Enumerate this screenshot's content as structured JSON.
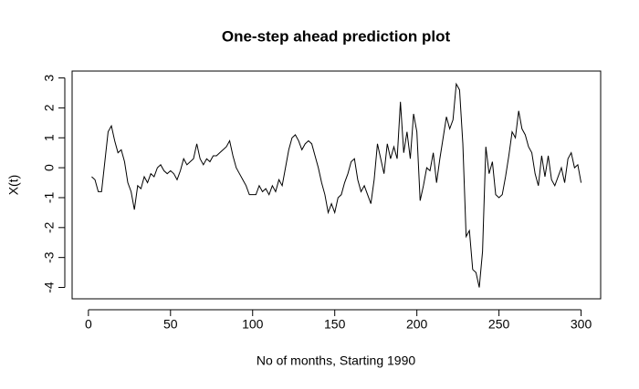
{
  "chart_data": {
    "type": "line",
    "title": "One-step ahead prediction plot",
    "x_label": "No of months, Starting 1990",
    "y_label": "X(t)",
    "x": [
      2,
      4,
      6,
      8,
      10,
      12,
      14,
      16,
      18,
      20,
      22,
      24,
      26,
      28,
      30,
      32,
      34,
      36,
      38,
      40,
      42,
      44,
      46,
      48,
      50,
      52,
      54,
      56,
      58,
      60,
      62,
      64,
      66,
      68,
      70,
      72,
      74,
      76,
      78,
      80,
      82,
      84,
      86,
      88,
      90,
      92,
      94,
      96,
      98,
      100,
      102,
      104,
      106,
      108,
      110,
      112,
      114,
      116,
      118,
      120,
      122,
      124,
      126,
      128,
      130,
      132,
      134,
      136,
      138,
      140,
      142,
      144,
      146,
      148,
      150,
      152,
      154,
      156,
      158,
      160,
      162,
      164,
      166,
      168,
      170,
      172,
      174,
      176,
      178,
      180,
      182,
      184,
      186,
      188,
      190,
      192,
      194,
      196,
      198,
      200,
      202,
      204,
      206,
      208,
      210,
      212,
      214,
      216,
      218,
      220,
      222,
      224,
      226,
      228,
      230,
      232,
      234,
      236,
      238,
      240,
      242,
      244,
      246,
      248,
      250,
      252,
      254,
      256,
      258,
      260,
      262,
      264,
      266,
      268,
      270,
      272,
      274,
      276,
      278,
      280,
      282,
      284,
      286,
      288,
      290,
      292,
      294,
      296,
      298,
      300
    ],
    "series": [
      {
        "color": "#000000",
        "values": [
          -0.3,
          -0.4,
          -0.8,
          -0.8,
          0.2,
          1.2,
          1.4,
          0.9,
          0.5,
          0.6,
          0.2,
          -0.5,
          -0.8,
          -1.4,
          -0.6,
          -0.7,
          -0.3,
          -0.5,
          -0.2,
          -0.3,
          0.0,
          0.1,
          -0.1,
          -0.2,
          -0.1,
          -0.2,
          -0.4,
          -0.1,
          0.3,
          0.1,
          0.2,
          0.3,
          0.8,
          0.3,
          0.1,
          0.3,
          0.2,
          0.4,
          0.4,
          0.5,
          0.6,
          0.7,
          0.9,
          0.4,
          0.0,
          -0.2,
          -0.4,
          -0.6,
          -0.9,
          -0.9,
          -0.9,
          -0.6,
          -0.8,
          -0.7,
          -0.9,
          -0.6,
          -0.8,
          -0.4,
          -0.6,
          0.0,
          0.6,
          1.0,
          1.1,
          0.9,
          0.6,
          0.8,
          0.9,
          0.8,
          0.4,
          0.0,
          -0.5,
          -0.9,
          -1.5,
          -1.2,
          -1.5,
          -1.0,
          -0.9,
          -0.5,
          -0.2,
          0.2,
          0.3,
          -0.4,
          -0.8,
          -0.6,
          -0.9,
          -1.2,
          -0.4,
          0.8,
          0.3,
          -0.2,
          0.8,
          0.3,
          0.7,
          0.3,
          2.2,
          0.5,
          1.2,
          0.3,
          1.8,
          1.2,
          -1.1,
          -0.6,
          0.0,
          -0.1,
          0.5,
          -0.5,
          0.3,
          1.0,
          1.7,
          1.3,
          1.6,
          2.8,
          2.6,
          0.8,
          -2.3,
          -2.1,
          -3.4,
          -3.5,
          -4.0,
          -2.8,
          0.7,
          -0.2,
          0.2,
          -0.9,
          -1.0,
          -0.9,
          -0.3,
          0.4,
          1.2,
          1.0,
          1.9,
          1.3,
          1.1,
          0.7,
          0.5,
          -0.2,
          -0.6,
          0.4,
          -0.3,
          0.4,
          -0.4,
          -0.6,
          -0.3,
          0.0,
          -0.5,
          0.3,
          0.5,
          0.0,
          0.1,
          -0.5
        ]
      }
    ],
    "xlim": [
      -9.92,
      311.92
    ],
    "xticks": [
      0,
      50,
      100,
      150,
      200,
      250,
      300
    ],
    "ylim": [
      -4.38,
      3.23
    ],
    "yticks": [
      -4,
      -3,
      -2,
      -1,
      0,
      1,
      2,
      3
    ]
  }
}
